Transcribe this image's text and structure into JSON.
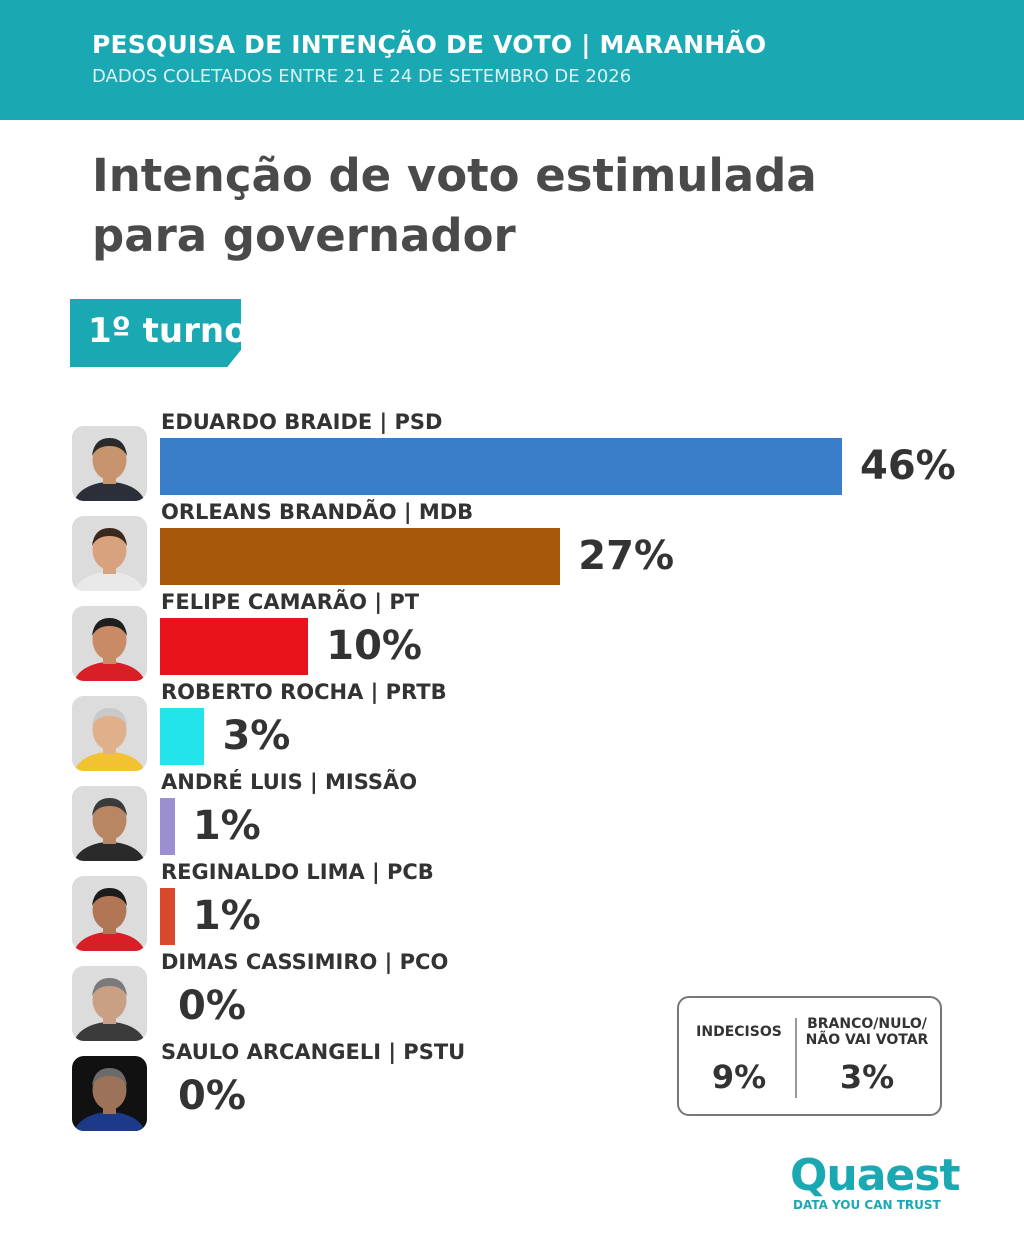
{
  "header": {
    "title": "PESQUISA DE INTENÇÃO DE VOTO | MARANHÃO",
    "subtitle": "DADOS COLETADOS ENTRE 21 E 24 DE SETEMBRO DE 2026"
  },
  "main_title": "Intenção de voto estimulada para governador",
  "round_badge": "1º turno",
  "chart_data": {
    "type": "bar",
    "orientation": "horizontal",
    "title": "Intenção de voto estimulada para governador",
    "categories": [
      "EDUARDO BRAIDE | PSD",
      "ORLEANS BRANDÃO | MDB",
      "FELIPE CAMARÃO | PT",
      "ROBERTO ROCHA | PRTB",
      "ANDRÉ LUIS | MISSÃO",
      "REGINALDO LIMA | PCB",
      "DIMAS CASSIMIRO | PCO",
      "SAULO ARCANGELI | PSTU"
    ],
    "values": [
      46,
      27,
      10,
      3,
      1,
      1,
      0,
      0
    ],
    "value_labels": [
      "46%",
      "27%",
      "10%",
      "3%",
      "1%",
      "1%",
      "0%",
      "0%"
    ],
    "colors": [
      "#3a7dc9",
      "#a75808",
      "#e8131b",
      "#22e4ea",
      "#9b8fd0",
      "#d9482a",
      "#cccccc",
      "#cccccc"
    ],
    "unit": "%",
    "xlim": [
      0,
      46
    ]
  },
  "summary": {
    "undecided_label": "INDECISOS",
    "undecided_value": "9%",
    "blank_label_1": "BRANCO/NULO/",
    "blank_label_2": "NÃO VAI VOTAR",
    "blank_value": "3%"
  },
  "logo": {
    "name": "Quaest",
    "tagline": "DATA YOU CAN TRUST"
  }
}
